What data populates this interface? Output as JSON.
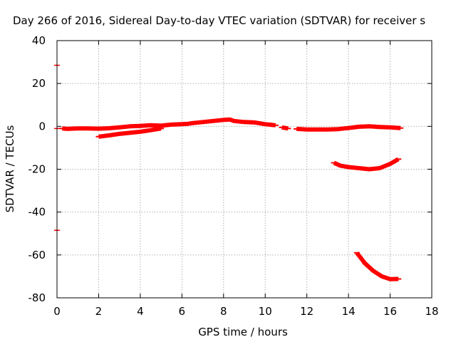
{
  "chart_data": {
    "type": "scatter",
    "title": "Day 266 of 2016, Sidereal Day-to-day VTEC variation (SDTVAR) for receiver s",
    "xlabel": "GPS time / hours",
    "ylabel": "SDTVAR / TECUs",
    "xlim": [
      0,
      18
    ],
    "ylim": [
      -80,
      40
    ],
    "xticks": [
      0,
      2,
      4,
      6,
      8,
      10,
      12,
      14,
      16,
      18
    ],
    "yticks": [
      -80,
      -60,
      -40,
      -20,
      0,
      20,
      40
    ],
    "xtick_labels": [
      "0",
      "2",
      "4",
      "6",
      "8",
      "10",
      "12",
      "14",
      "16",
      "18"
    ],
    "ytick_labels": [
      "-80",
      "-60",
      "-40",
      "-20",
      "0",
      "20",
      "40"
    ],
    "grid": true,
    "color": "#ff0000",
    "series": [
      {
        "points": [
          [
            0.25,
            -1.0
          ],
          [
            0.5,
            -1.2
          ],
          [
            1.0,
            -1.0
          ],
          [
            1.5,
            -1.0
          ],
          [
            2.0,
            -1.1
          ],
          [
            2.5,
            -0.9
          ],
          [
            3.0,
            -0.5
          ],
          [
            3.5,
            0.0
          ],
          [
            4.0,
            0.2
          ],
          [
            4.5,
            0.5
          ],
          [
            5.0,
            0.3
          ],
          [
            5.5,
            0.8
          ],
          [
            6.0,
            1.0
          ],
          [
            6.3,
            1.2
          ],
          [
            6.5,
            1.5
          ],
          [
            7.0,
            2.0
          ],
          [
            7.5,
            2.5
          ],
          [
            8.0,
            3.0
          ],
          [
            8.3,
            3.2
          ],
          [
            8.5,
            2.5
          ],
          [
            9.0,
            2.0
          ],
          [
            9.5,
            1.8
          ],
          [
            10.0,
            1.0
          ],
          [
            10.5,
            0.5
          ]
        ]
      },
      {
        "points": [
          [
            10.8,
            -0.5
          ],
          [
            11.1,
            -1.0
          ]
        ]
      },
      {
        "points": [
          [
            11.5,
            -1.2
          ],
          [
            12.0,
            -1.5
          ],
          [
            12.5,
            -1.5
          ],
          [
            13.0,
            -1.5
          ],
          [
            13.5,
            -1.3
          ],
          [
            14.0,
            -0.8
          ],
          [
            14.5,
            -0.2
          ],
          [
            15.0,
            0.0
          ],
          [
            15.5,
            -0.3
          ],
          [
            16.0,
            -0.5
          ],
          [
            16.5,
            -0.8
          ]
        ]
      },
      {
        "points": [
          [
            2.0,
            -4.8
          ],
          [
            2.5,
            -4.2
          ],
          [
            3.0,
            -3.5
          ],
          [
            3.5,
            -3.0
          ],
          [
            4.0,
            -2.5
          ],
          [
            4.5,
            -1.8
          ],
          [
            5.0,
            -1.0
          ]
        ]
      },
      {
        "points": [
          [
            13.3,
            -17.0
          ],
          [
            13.6,
            -18.3
          ],
          [
            14.0,
            -19.0
          ],
          [
            14.5,
            -19.5
          ],
          [
            15.0,
            -20.0
          ],
          [
            15.5,
            -19.5
          ],
          [
            16.0,
            -17.5
          ],
          [
            16.4,
            -15.3
          ]
        ]
      },
      {
        "points": [
          [
            14.4,
            -59.0
          ],
          [
            14.8,
            -64.0
          ],
          [
            15.2,
            -67.5
          ],
          [
            15.6,
            -70.0
          ],
          [
            16.0,
            -71.3
          ],
          [
            16.4,
            -71.2
          ]
        ]
      },
      {
        "points": [
          [
            0.0,
            28.5
          ],
          [
            0.0,
            -1.0
          ],
          [
            0.0,
            -48.5
          ]
        ]
      }
    ]
  }
}
